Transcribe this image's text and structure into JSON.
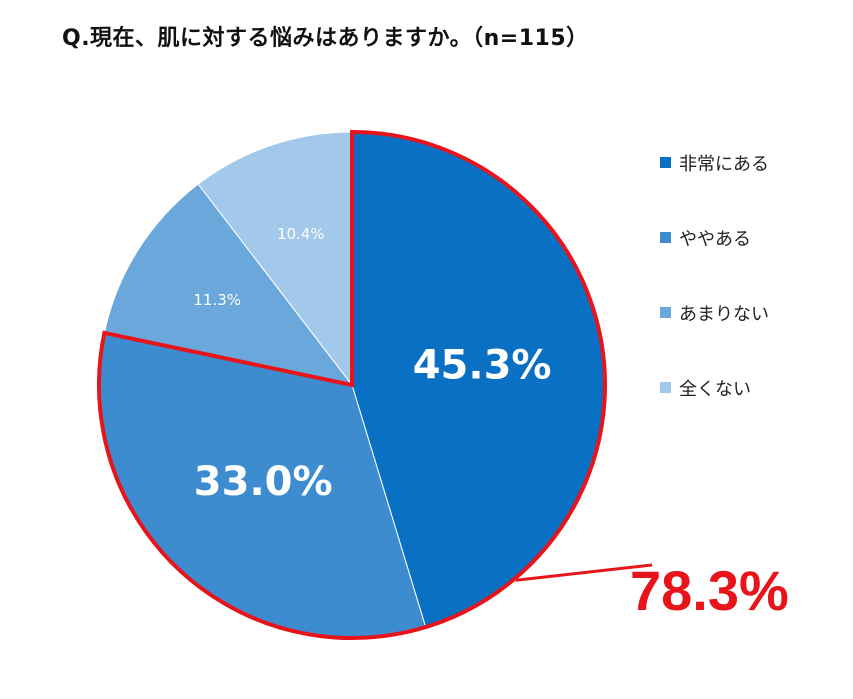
{
  "title": "Q.現在、肌に対する悩みはありますか。（n=115）",
  "chart_data": {
    "type": "pie",
    "categories": [
      "非常にある",
      "ややある",
      "あまりない",
      "全くない"
    ],
    "values": [
      45.3,
      33.0,
      11.3,
      10.4
    ],
    "labels": [
      "45.3%",
      "33.0%",
      "11.3%",
      "10.4%"
    ],
    "colors": [
      "#0a70c4",
      "#3d8cd0",
      "#6aa7db",
      "#a2c8ea"
    ],
    "legend_position": "right",
    "annotation": {
      "text": "78.3%",
      "highlighted_categories": [
        "非常にある",
        "ややある"
      ],
      "color": "#e8141b"
    }
  }
}
